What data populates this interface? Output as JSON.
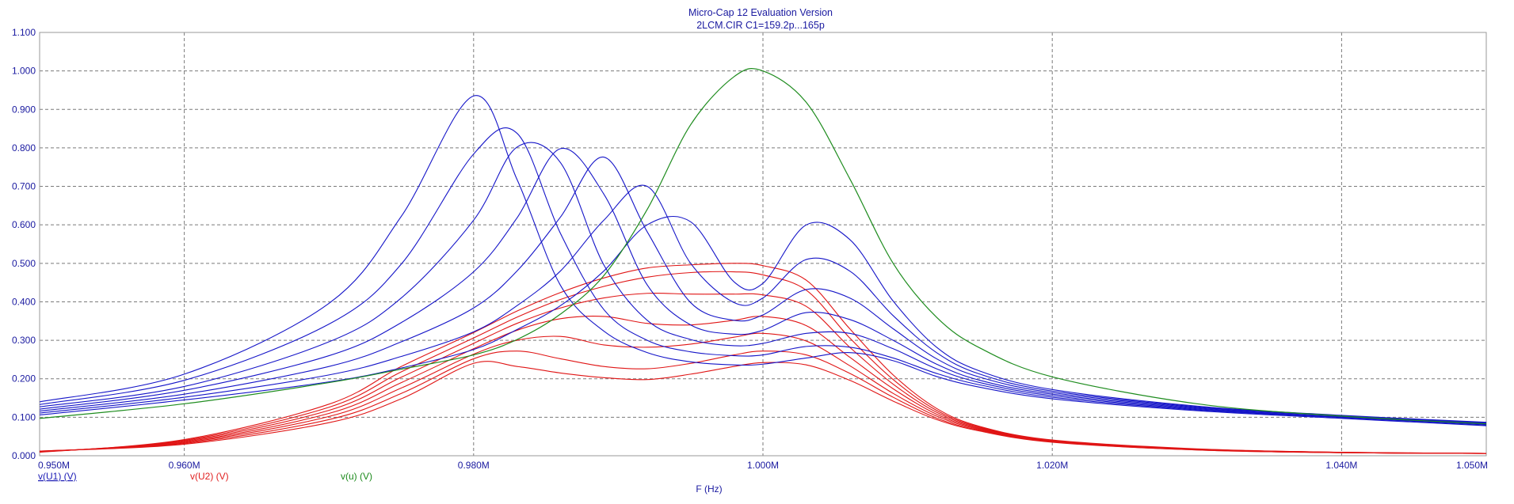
{
  "chart_data": {
    "type": "line",
    "title": "Micro-Cap 12 Evaluation Version",
    "subtitle": "2LCM.CIR C1=159.2p...165p",
    "xlabel": "F (Hz)",
    "ylabel": "",
    "xlim": [
      0.95,
      1.05
    ],
    "ylim": [
      0,
      1.1
    ],
    "x_unit": "MHz",
    "grid": true,
    "x_ticks": [
      {
        "value": 0.95,
        "label": "0.950M"
      },
      {
        "value": 0.96,
        "label": "0.960M"
      },
      {
        "value": 0.98,
        "label": "0.980M"
      },
      {
        "value": 1.0,
        "label": "1.000M"
      },
      {
        "value": 1.02,
        "label": "1.020M"
      },
      {
        "value": 1.04,
        "label": "1.040M"
      },
      {
        "value": 1.05,
        "label": "1.050M"
      }
    ],
    "x_grid": [
      0.96,
      0.98,
      1.0,
      1.02,
      1.04
    ],
    "y_ticks": [
      {
        "value": 0.0,
        "label": "0.000"
      },
      {
        "value": 0.1,
        "label": "0.100"
      },
      {
        "value": 0.2,
        "label": "0.200"
      },
      {
        "value": 0.3,
        "label": "0.300"
      },
      {
        "value": 0.4,
        "label": "0.400"
      },
      {
        "value": 0.5,
        "label": "0.500"
      },
      {
        "value": 0.6,
        "label": "0.600"
      },
      {
        "value": 0.7,
        "label": "0.700"
      },
      {
        "value": 0.8,
        "label": "0.800"
      },
      {
        "value": 0.9,
        "label": "0.900"
      },
      {
        "value": 1.0,
        "label": "1.000"
      },
      {
        "value": 1.1,
        "label": "1.100"
      }
    ],
    "legend": [
      {
        "label": "v(U1) (V)",
        "color": "#1a1ab4",
        "underline": true
      },
      {
        "label": "v(U2) (V)",
        "color": "#e02020",
        "underline": false
      },
      {
        "label": "v(u) (V)",
        "color": "#1c8a1c",
        "underline": false
      }
    ],
    "colors": {
      "u1": "#1515c8",
      "u2": "#e01515",
      "u": "#1e8c1e",
      "text": "#1a1aa0"
    },
    "x": [
      0.95,
      0.96,
      0.97,
      0.975,
      0.98,
      0.983,
      0.986,
      0.989,
      0.992,
      0.995,
      0.998,
      1.0,
      1.003,
      1.006,
      1.009,
      1.012,
      1.015,
      1.02,
      1.03,
      1.04,
      1.05
    ],
    "series": [
      {
        "name": "v(U1) (V)",
        "group": "u1",
        "curve": 1,
        "values": [
          0.14,
          0.212,
          0.396,
          0.622,
          0.935,
          0.718,
          0.443,
          0.324,
          0.268,
          0.244,
          0.236,
          0.238,
          0.254,
          0.268,
          0.247,
          0.206,
          0.178,
          0.148,
          0.117,
          0.097,
          0.078
        ]
      },
      {
        "name": "v(U1) (V)",
        "group": "u1",
        "curve": 2,
        "values": [
          0.133,
          0.196,
          0.342,
          0.498,
          0.784,
          0.838,
          0.578,
          0.38,
          0.3,
          0.27,
          0.26,
          0.262,
          0.284,
          0.282,
          0.254,
          0.214,
          0.184,
          0.152,
          0.119,
          0.099,
          0.08
        ]
      },
      {
        "name": "v(U1) (V)",
        "group": "u1",
        "curve": 3,
        "values": [
          0.127,
          0.18,
          0.296,
          0.41,
          0.612,
          0.802,
          0.762,
          0.496,
          0.352,
          0.302,
          0.286,
          0.292,
          0.318,
          0.318,
          0.278,
          0.226,
          0.19,
          0.156,
          0.121,
          0.1,
          0.082
        ]
      },
      {
        "name": "v(U1) (V)",
        "group": "u1",
        "curve": 4,
        "values": [
          0.121,
          0.17,
          0.26,
          0.346,
          0.478,
          0.618,
          0.798,
          0.68,
          0.444,
          0.34,
          0.316,
          0.326,
          0.372,
          0.354,
          0.3,
          0.238,
          0.196,
          0.16,
          0.123,
          0.101,
          0.084
        ]
      },
      {
        "name": "v(U1) (V)",
        "group": "u1",
        "curve": 5,
        "values": [
          0.116,
          0.16,
          0.232,
          0.296,
          0.384,
          0.48,
          0.62,
          0.776,
          0.582,
          0.398,
          0.352,
          0.366,
          0.432,
          0.41,
          0.33,
          0.252,
          0.204,
          0.164,
          0.125,
          0.103,
          0.085
        ]
      },
      {
        "name": "v(U1) (V)",
        "group": "u1",
        "curve": 6,
        "values": [
          0.111,
          0.152,
          0.21,
          0.258,
          0.322,
          0.39,
          0.48,
          0.612,
          0.7,
          0.5,
          0.398,
          0.41,
          0.51,
          0.48,
          0.364,
          0.268,
          0.212,
          0.168,
          0.127,
          0.104,
          0.086
        ]
      },
      {
        "name": "v(U1) (V)",
        "group": "u1",
        "curve": 7,
        "values": [
          0.106,
          0.145,
          0.192,
          0.228,
          0.276,
          0.328,
          0.39,
          0.48,
          0.6,
          0.608,
          0.452,
          0.448,
          0.6,
          0.562,
          0.402,
          0.282,
          0.22,
          0.172,
          0.129,
          0.105,
          0.087
        ]
      },
      {
        "name": "v(U2) (V)",
        "group": "u2",
        "curve": 1,
        "values": [
          0.012,
          0.03,
          0.086,
          0.148,
          0.24,
          0.232,
          0.215,
          0.203,
          0.198,
          0.212,
          0.232,
          0.242,
          0.236,
          0.196,
          0.142,
          0.094,
          0.064,
          0.035,
          0.015,
          0.008,
          0.006
        ]
      },
      {
        "name": "v(U2) (V)",
        "group": "u2",
        "curve": 2,
        "values": [
          0.012,
          0.032,
          0.094,
          0.162,
          0.252,
          0.272,
          0.252,
          0.232,
          0.226,
          0.24,
          0.262,
          0.272,
          0.262,
          0.214,
          0.152,
          0.098,
          0.066,
          0.036,
          0.015,
          0.008,
          0.006
        ]
      },
      {
        "name": "v(U2) (V)",
        "group": "u2",
        "curve": 3,
        "values": [
          0.011,
          0.034,
          0.102,
          0.176,
          0.264,
          0.3,
          0.31,
          0.288,
          0.282,
          0.29,
          0.308,
          0.318,
          0.298,
          0.234,
          0.162,
          0.103,
          0.068,
          0.037,
          0.016,
          0.008,
          0.006
        ]
      },
      {
        "name": "v(U2) (V)",
        "group": "u2",
        "curve": 4,
        "values": [
          0.011,
          0.036,
          0.11,
          0.19,
          0.278,
          0.326,
          0.356,
          0.362,
          0.344,
          0.34,
          0.352,
          0.362,
          0.338,
          0.256,
          0.174,
          0.108,
          0.07,
          0.038,
          0.016,
          0.008,
          0.006
        ]
      },
      {
        "name": "v(U2) (V)",
        "group": "u2",
        "curve": 5,
        "values": [
          0.01,
          0.038,
          0.118,
          0.204,
          0.292,
          0.344,
          0.384,
          0.41,
          0.422,
          0.42,
          0.42,
          0.418,
          0.388,
          0.282,
          0.186,
          0.113,
          0.072,
          0.039,
          0.017,
          0.009,
          0.006
        ]
      },
      {
        "name": "v(U2) (V)",
        "group": "u2",
        "curve": 6,
        "values": [
          0.01,
          0.04,
          0.126,
          0.218,
          0.306,
          0.36,
          0.406,
          0.44,
          0.464,
          0.476,
          0.478,
          0.47,
          0.43,
          0.306,
          0.198,
          0.118,
          0.074,
          0.04,
          0.017,
          0.009,
          0.006
        ]
      },
      {
        "name": "v(U2) (V)",
        "group": "u2",
        "curve": 7,
        "values": [
          0.009,
          0.042,
          0.134,
          0.232,
          0.32,
          0.376,
          0.424,
          0.462,
          0.488,
          0.496,
          0.5,
          0.494,
          0.456,
          0.33,
          0.21,
          0.123,
          0.076,
          0.041,
          0.018,
          0.009,
          0.006
        ]
      },
      {
        "name": "v(u) (V)",
        "group": "u",
        "curve": 1,
        "values": [
          0.097,
          0.135,
          0.19,
          0.225,
          0.262,
          0.302,
          0.368,
          0.468,
          0.64,
          0.86,
          0.985,
          1.0,
          0.918,
          0.72,
          0.5,
          0.36,
          0.28,
          0.205,
          0.135,
          0.103,
          0.083
        ]
      }
    ]
  }
}
